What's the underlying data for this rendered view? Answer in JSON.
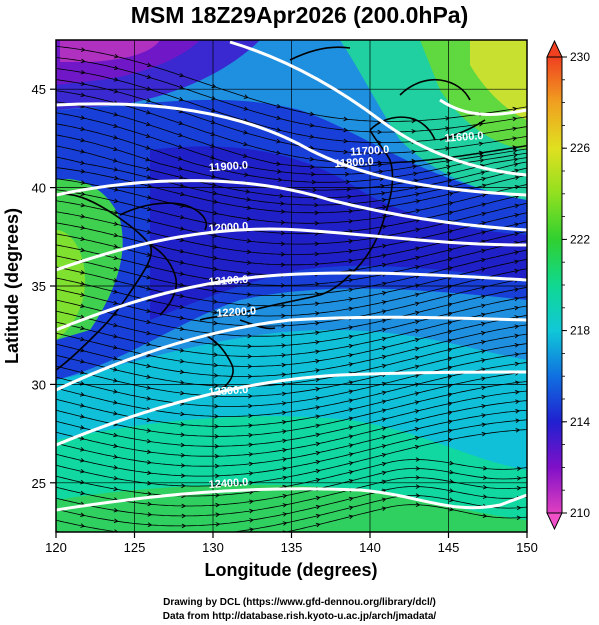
{
  "header": {
    "title": "MSM 18Z29Apr2026 (200.0hPa)"
  },
  "footer": {
    "line1": "Drawing by DCL (https://www.gfd-dennou.org/library/dcl/)",
    "line2": "Data from http://database.rish.kyoto-u.ac.jp/arch/jmadata/"
  },
  "chart_data": {
    "type": "heatmap",
    "title": "MSM 18Z29Apr2026 (200.0hPa)",
    "xlabel": "Longitude (degrees)",
    "ylabel": "Latitude  (degrees)",
    "xlim": [
      120,
      150
    ],
    "ylim": [
      22.5,
      47.5
    ],
    "x_ticks": [
      120,
      125,
      130,
      135,
      140,
      145,
      150
    ],
    "y_ticks": [
      25,
      30,
      35,
      40,
      45
    ],
    "colorbar": {
      "min": 210,
      "max": 230,
      "tick_labels": [
        "210",
        "214",
        "218",
        "222",
        "226",
        "230"
      ],
      "colors": [
        "#e040c0",
        "#8010c8",
        "#2020d0",
        "#1070e0",
        "#10c8d8",
        "#10d890",
        "#30d030",
        "#90e020",
        "#e0e020",
        "#f0a020",
        "#f04020"
      ]
    },
    "contours": [
      {
        "label": "11700.0",
        "lon": 140,
        "lat": 41.7
      },
      {
        "label": "11800.0",
        "lon": 139,
        "lat": 41.1
      },
      {
        "label": "11900.0",
        "lon": 131,
        "lat": 40.9
      },
      {
        "label": "12000.0",
        "lon": 131,
        "lat": 37.8
      },
      {
        "label": "12100.0",
        "lon": 131,
        "lat": 35.1
      },
      {
        "label": "12200.0",
        "lon": 131.5,
        "lat": 33.5
      },
      {
        "label": "12300.0",
        "lon": 131,
        "lat": 29.5
      },
      {
        "label": "12400.0",
        "lon": 131,
        "lat": 24.8
      },
      {
        "label": "11600.0",
        "lon": 146,
        "lat": 42.4
      }
    ],
    "streamlines": true,
    "coastlines": true,
    "grid": true
  }
}
